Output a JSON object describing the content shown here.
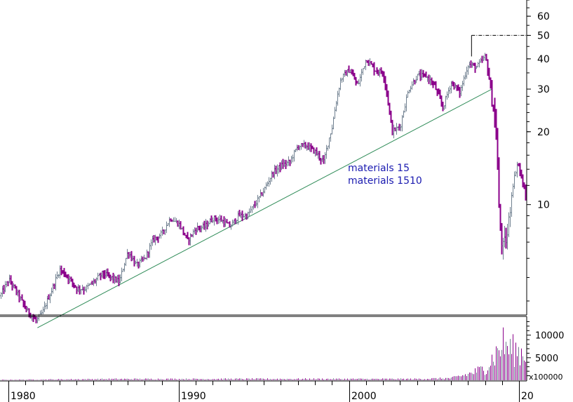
{
  "chart_data": {
    "type": "bar",
    "subtype": "ohlc-log-with-volume",
    "price_axis": {
      "scale": "log",
      "ticks": [
        10,
        20,
        30,
        40,
        50,
        60
      ],
      "tick_labels": [
        "10",
        "20",
        "30",
        "40",
        "50",
        "60"
      ],
      "range": [
        3.5,
        70
      ]
    },
    "volume_axis": {
      "ticks": [
        5000,
        10000
      ],
      "tick_labels": [
        "5000",
        "10000"
      ],
      "multiplier_label": "x100000",
      "range": [
        0,
        14000
      ]
    },
    "x_axis": {
      "range": [
        1979.5,
        2010.4
      ],
      "labeled_years": [
        1980,
        1990,
        2000
      ],
      "labels": [
        "1980",
        "1990",
        "2000",
        "20"
      ]
    },
    "annotations": [
      "materials 15",
      "materials 1510"
    ],
    "trendline": {
      "from": {
        "x": 1981.7,
        "y": 3.1
      },
      "to": {
        "x": 2008.4,
        "y": 30
      },
      "color": "#2e8b57"
    },
    "resistance_line": {
      "from_x": 2007.2,
      "to_x": 2010.4,
      "y": 50,
      "style": "dash-dot"
    },
    "colors": {
      "up": "#708090",
      "down": "#8b008b",
      "trend": "#2e8b57",
      "annotation": "#1a1ab0"
    },
    "price_path": [
      [
        1979.5,
        4.2
      ],
      [
        1980.0,
        4.9
      ],
      [
        1980.5,
        4.3
      ],
      [
        1981.0,
        3.7
      ],
      [
        1981.6,
        3.3
      ],
      [
        1982.0,
        3.6
      ],
      [
        1982.5,
        4.4
      ],
      [
        1983.0,
        5.4
      ],
      [
        1983.5,
        5.0
      ],
      [
        1984.0,
        4.5
      ],
      [
        1984.5,
        4.5
      ],
      [
        1985.0,
        4.8
      ],
      [
        1985.5,
        5.2
      ],
      [
        1986.0,
        5.0
      ],
      [
        1986.5,
        4.8
      ],
      [
        1987.0,
        6.4
      ],
      [
        1987.5,
        5.6
      ],
      [
        1988.0,
        6.0
      ],
      [
        1988.5,
        7.2
      ],
      [
        1989.0,
        7.6
      ],
      [
        1989.5,
        8.8
      ],
      [
        1990.0,
        8.3
      ],
      [
        1990.5,
        7.1
      ],
      [
        1991.0,
        8.0
      ],
      [
        1991.5,
        8.1
      ],
      [
        1992.0,
        8.8
      ],
      [
        1992.5,
        8.6
      ],
      [
        1993.0,
        8.1
      ],
      [
        1993.5,
        9.0
      ],
      [
        1994.0,
        9.0
      ],
      [
        1994.5,
        10.1
      ],
      [
        1995.0,
        11.5
      ],
      [
        1995.5,
        13.5
      ],
      [
        1996.0,
        14.5
      ],
      [
        1996.5,
        15.0
      ],
      [
        1997.0,
        17.5
      ],
      [
        1997.5,
        17.5
      ],
      [
        1998.0,
        16.5
      ],
      [
        1998.5,
        15.0
      ],
      [
        1999.0,
        21.0
      ],
      [
        1999.5,
        33.0
      ],
      [
        2000.0,
        36.0
      ],
      [
        2000.5,
        31.0
      ],
      [
        2001.0,
        40.0
      ],
      [
        2001.5,
        36.0
      ],
      [
        2002.0,
        35.0
      ],
      [
        2002.5,
        20.0
      ],
      [
        2003.0,
        21.0
      ],
      [
        2003.5,
        30.0
      ],
      [
        2004.0,
        34.0
      ],
      [
        2004.5,
        34.0
      ],
      [
        2005.0,
        31.0
      ],
      [
        2005.5,
        25.0
      ],
      [
        2006.0,
        32.0
      ],
      [
        2006.5,
        29.0
      ],
      [
        2007.0,
        38.0
      ],
      [
        2007.5,
        37.0
      ],
      [
        2008.0,
        41.0
      ],
      [
        2008.3,
        30.0
      ],
      [
        2008.6,
        21.0
      ],
      [
        2008.8,
        9.0
      ],
      [
        2009.0,
        6.5
      ],
      [
        2009.3,
        7.5
      ],
      [
        2009.6,
        12.0
      ],
      [
        2009.9,
        15.0
      ],
      [
        2010.2,
        12.0
      ],
      [
        2010.4,
        10.5
      ]
    ],
    "volume_path": [
      [
        1979.5,
        100
      ],
      [
        1986.0,
        300
      ],
      [
        1996.0,
        320
      ],
      [
        2004.0,
        300
      ],
      [
        2006.0,
        500
      ],
      [
        2007.0,
        1500
      ],
      [
        2008.0,
        3000
      ],
      [
        2008.7,
        7000
      ],
      [
        2009.0,
        9000
      ],
      [
        2009.5,
        7500
      ],
      [
        2010.4,
        6500
      ]
    ]
  }
}
